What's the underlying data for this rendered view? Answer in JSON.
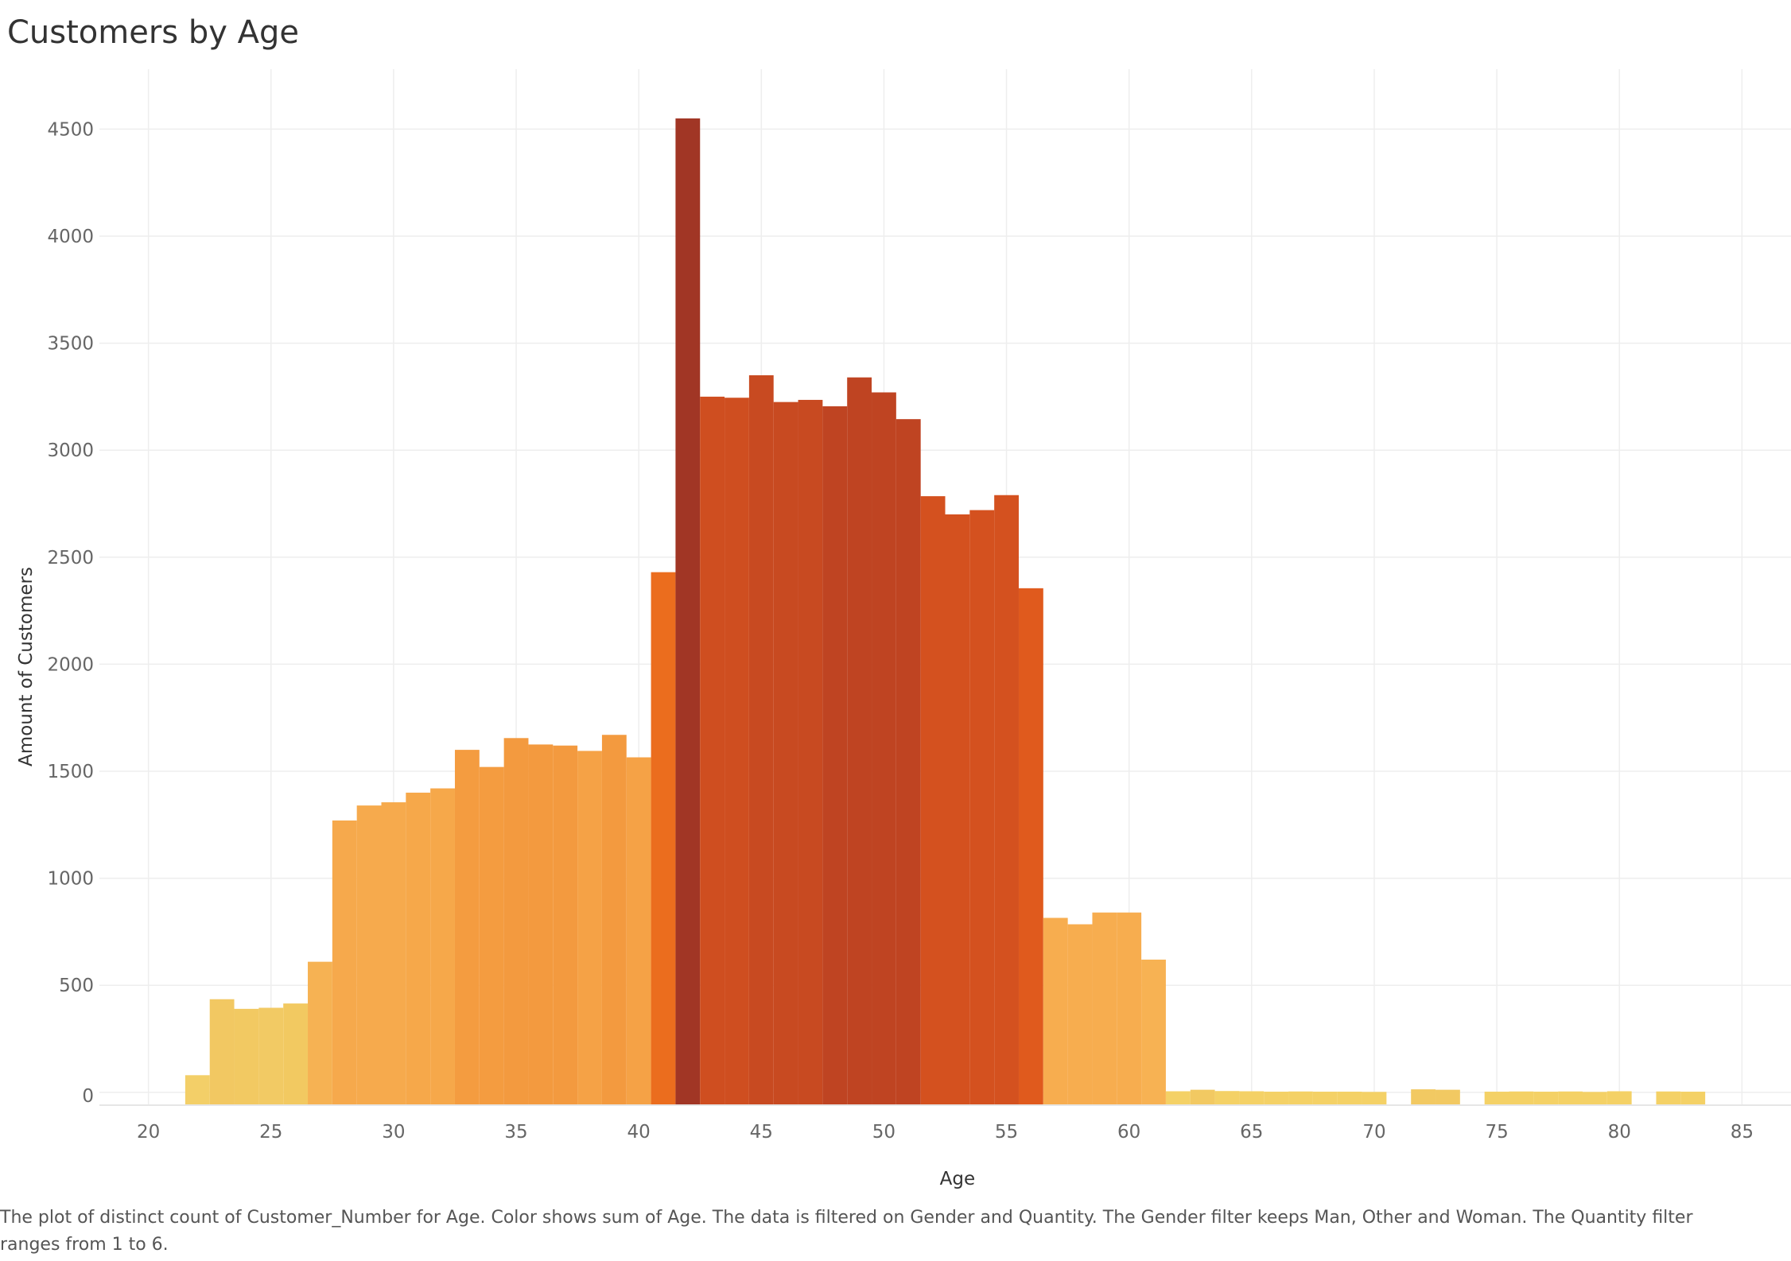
{
  "title": "Customers by Age",
  "caption": "The plot of distinct count of Customer_Number for Age.  Color shows sum of Age. The data is filtered on Gender and Quantity. The Gender filter keeps Man, Other and Woman. The Quantity filter ranges from 1 to 6.",
  "chart_data": {
    "type": "bar",
    "title": "Customers by Age",
    "xlabel": "Age",
    "ylabel": "Amount of Customers",
    "xlim": [
      18,
      87
    ],
    "ylim": [
      -60,
      4780
    ],
    "xticks": [
      20,
      25,
      30,
      35,
      40,
      45,
      50,
      55,
      60,
      65,
      70,
      75,
      80,
      85
    ],
    "yticks": [
      0,
      500,
      1000,
      1500,
      2000,
      2500,
      3000,
      3500,
      4000,
      4500
    ],
    "grid": true,
    "legend": "none",
    "color_scale": [
      "#f4d166",
      "#f7a94b",
      "#ee7a2a",
      "#d4511f",
      "#a13625"
    ],
    "color_encoding": "sum of Age (darker = larger)",
    "x": [
      22,
      23,
      24,
      25,
      26,
      27,
      28,
      29,
      30,
      31,
      32,
      33,
      34,
      35,
      36,
      37,
      38,
      39,
      40,
      41,
      42,
      43,
      44,
      45,
      46,
      47,
      48,
      49,
      50,
      51,
      52,
      53,
      54,
      55,
      56,
      57,
      58,
      59,
      60,
      61,
      62,
      63,
      64,
      65,
      66,
      67,
      68,
      69,
      70,
      71,
      72,
      73,
      74,
      75,
      76,
      77,
      78,
      79,
      80,
      81,
      82,
      83
    ],
    "values": [
      80,
      435,
      390,
      395,
      415,
      610,
      1270,
      1340,
      1355,
      1400,
      1420,
      1600,
      1520,
      1655,
      1625,
      1620,
      1595,
      1670,
      1565,
      2430,
      4550,
      3250,
      3245,
      3350,
      3225,
      3235,
      3205,
      3340,
      3270,
      3145,
      2785,
      2700,
      2720,
      2790,
      2355,
      815,
      785,
      840,
      840,
      620,
      5,
      12,
      6,
      5,
      3,
      4,
      3,
      3,
      2,
      0,
      14,
      12,
      0,
      3,
      4,
      3,
      4,
      2,
      5,
      0,
      4,
      3
    ],
    "colors": [
      "#f3cf68",
      "#f2c862",
      "#f2c962",
      "#f2ca64",
      "#f2c961",
      "#f6b253",
      "#f6a94c",
      "#f6aa4d",
      "#f6aa4d",
      "#f6a84a",
      "#f6a84a",
      "#f49c40",
      "#f49c40",
      "#f39a3f",
      "#f39a3f",
      "#f39a3f",
      "#f5a246",
      "#f39a3f",
      "#f5a246",
      "#eb6d1e",
      "#a13625",
      "#cf4e20",
      "#cf4e20",
      "#c84a21",
      "#c84a21",
      "#c84a21",
      "#bf4422",
      "#bf4422",
      "#bf4422",
      "#bf4422",
      "#d4511f",
      "#d4511f",
      "#d4511f",
      "#d4511f",
      "#e05a1d",
      "#f7ad4f",
      "#f7ad4f",
      "#f7ad4f",
      "#f7ad4f",
      "#f7b253",
      "#f4d166",
      "#f2c962",
      "#f4d166",
      "#f4d166",
      "#f4d166",
      "#f4d166",
      "#f4d166",
      "#f4d166",
      "#f4d166",
      "#f4d166",
      "#f2c962",
      "#f2c962",
      "#f4d166",
      "#f4d166",
      "#f4d166",
      "#f4d166",
      "#f4d166",
      "#f4d166",
      "#f4d166",
      "#f4d166",
      "#f4d166",
      "#f4d166"
    ]
  }
}
